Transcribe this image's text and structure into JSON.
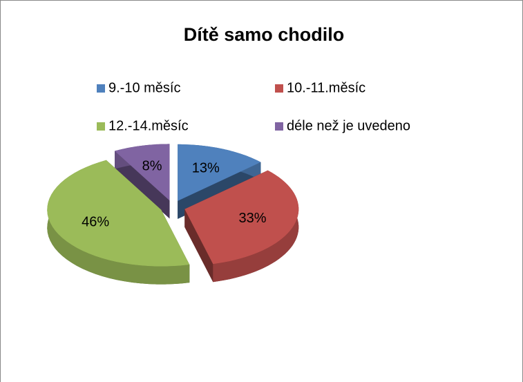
{
  "chart_data": {
    "type": "pie",
    "title": "Dítě samo chodilo",
    "categories": [
      "9.-10 měsíc",
      "10.-11.měsíc",
      "12.-14.měsíc",
      "déle než je uvedeno"
    ],
    "values": [
      13,
      33,
      46,
      8
    ],
    "value_labels": [
      "13%",
      "33%",
      "46%",
      "8%"
    ],
    "colors": [
      "#4f81bd",
      "#c0504d",
      "#9bbb59",
      "#8064a2"
    ],
    "legend": "top"
  }
}
